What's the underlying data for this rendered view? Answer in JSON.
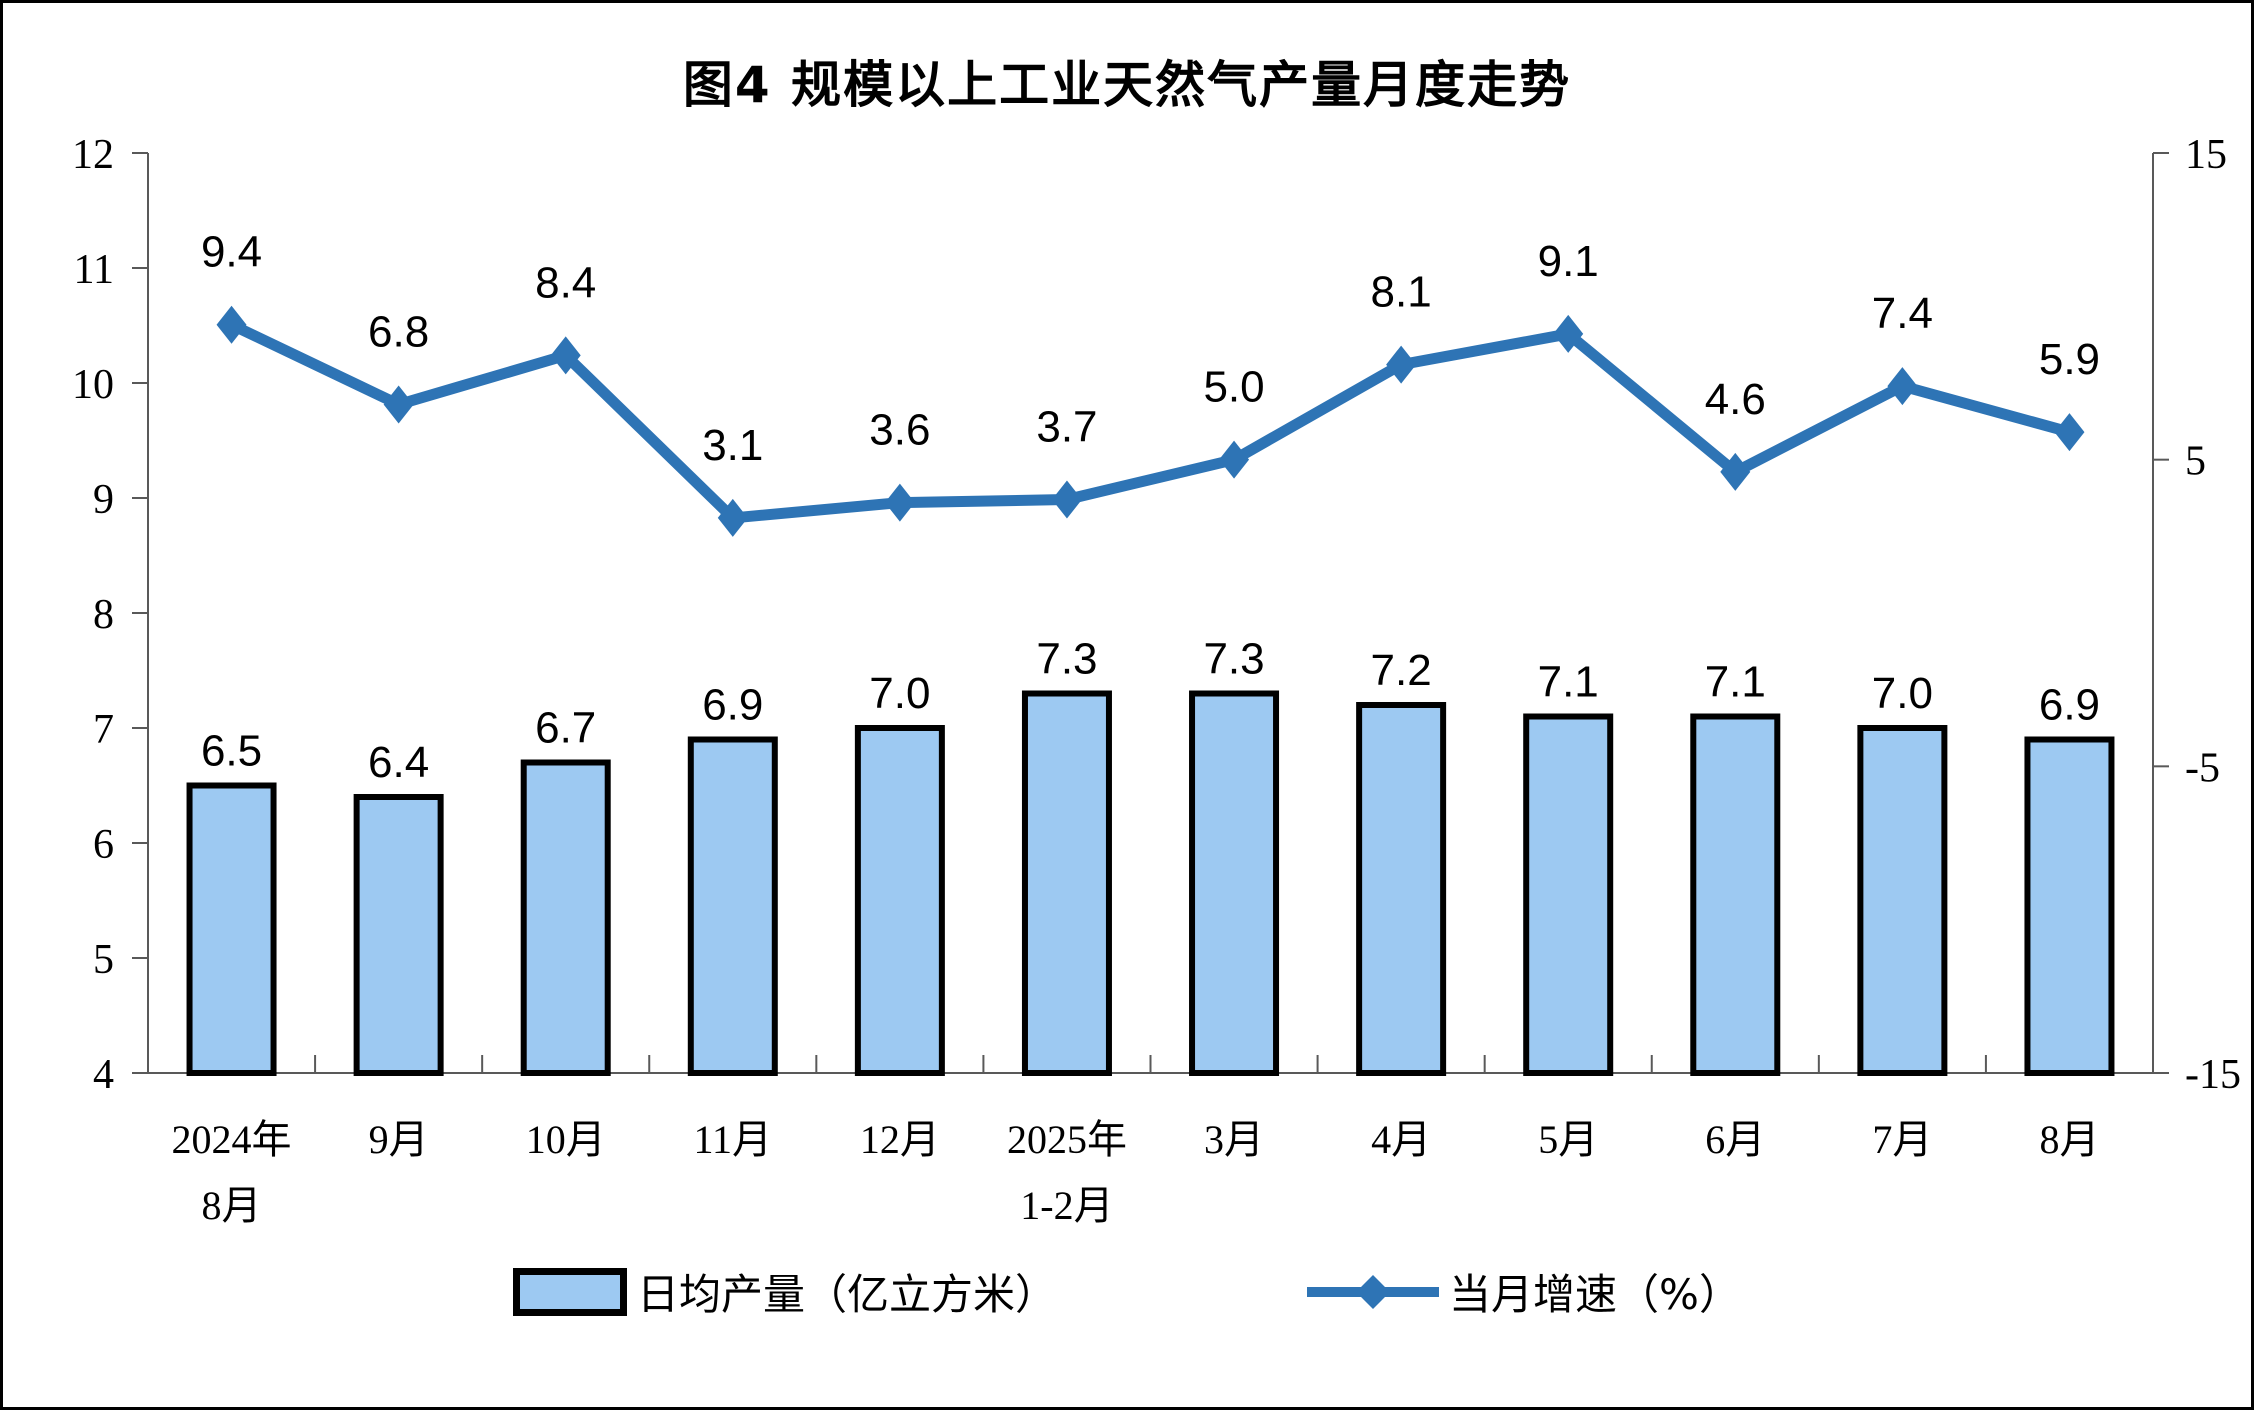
{
  "chart_data": {
    "type": "combo_bar_line",
    "title": "图4 规模以上工业天然气产量月度走势",
    "categories": [
      "2024年|8月",
      "9月",
      "10月",
      "11月",
      "12月",
      "2025年|1-2月",
      "3月",
      "4月",
      "5月",
      "6月",
      "7月",
      "8月"
    ],
    "bar_series": {
      "name": "日均产量（亿立方米）",
      "axis": "left",
      "values": [
        6.5,
        6.4,
        6.7,
        6.9,
        7.0,
        7.3,
        7.3,
        7.2,
        7.1,
        7.1,
        7.0,
        6.9
      ]
    },
    "line_series": {
      "name": "当月增速（%）",
      "axis": "right",
      "marker": "diamond",
      "values": [
        9.4,
        6.8,
        8.4,
        3.1,
        3.6,
        3.7,
        5.0,
        8.1,
        9.1,
        4.6,
        7.4,
        5.9
      ]
    },
    "left_axis": {
      "min": 4,
      "max": 12,
      "ticks": [
        4,
        5,
        6,
        7,
        8,
        9,
        10,
        11,
        12
      ]
    },
    "right_axis": {
      "min": -15,
      "max": 15,
      "ticks": [
        -15,
        -5,
        5,
        15
      ]
    },
    "value_label_decimals": 1,
    "grid": false,
    "legend_position": "bottom"
  },
  "colors": {
    "background": "#FFFFFF",
    "page_border": "#000000",
    "bar_fill": "#9DC9F2",
    "bar_stroke": "#000000",
    "line": "#2E74B5",
    "axis_line": "#595959",
    "text": "#000000"
  }
}
